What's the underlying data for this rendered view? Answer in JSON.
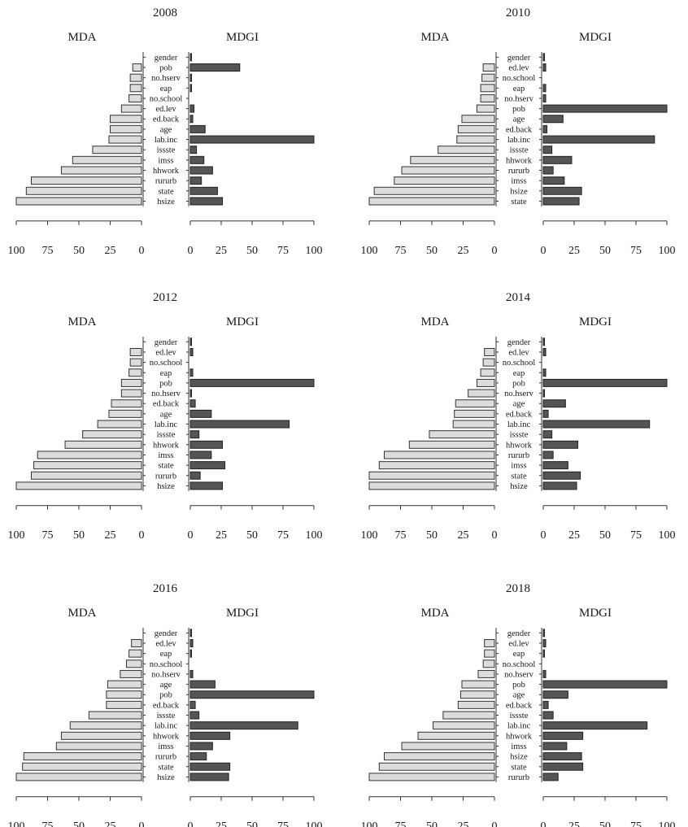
{
  "chart_data": [
    {
      "type": "bar",
      "title": "2008",
      "left_label": "MDA",
      "right_label": "MDGI",
      "categories": [
        "gender",
        "pob",
        "no.hserv",
        "eap",
        "no.school",
        "ed.lev",
        "ed.back",
        "age",
        "lab.inc",
        "issste",
        "imss",
        "hhwork",
        "rururb",
        "state",
        "hsize"
      ],
      "series": [
        {
          "name": "MDA",
          "values": [
            0,
            7,
            9,
            9,
            10,
            16,
            25,
            25,
            26,
            39,
            55,
            64,
            88,
            92,
            100
          ]
        },
        {
          "name": "MDGI",
          "values": [
            1,
            40,
            1,
            1,
            0,
            3,
            2,
            12,
            100,
            5,
            11,
            18,
            9,
            22,
            26
          ]
        }
      ],
      "xticks": [
        "100",
        "75",
        "50",
        "25",
        "0"
      ],
      "xticks_right": [
        "0",
        "25",
        "50",
        "75",
        "100"
      ],
      "xlim": [
        0,
        100
      ]
    },
    {
      "type": "bar",
      "title": "2010",
      "left_label": "MDA",
      "right_label": "MDGI",
      "categories": [
        "gender",
        "ed.lev",
        "no.school",
        "eap",
        "no.hserv",
        "pob",
        "age",
        "ed.back",
        "lab.inc",
        "issste",
        "hhwork",
        "rururb",
        "imss",
        "hsize",
        "state"
      ],
      "series": [
        {
          "name": "MDA",
          "values": [
            0,
            9,
            10,
            11,
            11,
            14,
            26,
            29,
            30,
            45,
            67,
            74,
            80,
            96,
            100
          ]
        },
        {
          "name": "MDGI",
          "values": [
            1,
            2,
            0,
            2,
            2,
            100,
            16,
            3,
            90,
            7,
            23,
            8,
            17,
            31,
            29
          ]
        }
      ],
      "xticks": [
        "100",
        "75",
        "50",
        "25",
        "0"
      ],
      "xticks_right": [
        "0",
        "25",
        "50",
        "75",
        "100"
      ],
      "xlim": [
        0,
        100
      ]
    },
    {
      "type": "bar",
      "title": "2012",
      "left_label": "MDA",
      "right_label": "MDGI",
      "categories": [
        "gender",
        "ed.lev",
        "no.school",
        "eap",
        "pob",
        "no.hserv",
        "ed.back",
        "age",
        "lab.inc",
        "issste",
        "hhwork",
        "imss",
        "state",
        "rururb",
        "hsize"
      ],
      "series": [
        {
          "name": "MDA",
          "values": [
            0,
            9,
            9,
            10,
            16,
            16,
            24,
            26,
            35,
            47,
            61,
            83,
            86,
            88,
            100
          ]
        },
        {
          "name": "MDGI",
          "values": [
            1,
            2,
            0,
            2,
            100,
            1,
            4,
            17,
            80,
            7,
            26,
            17,
            28,
            8,
            26
          ]
        }
      ],
      "xticks": [
        "100",
        "75",
        "50",
        "25",
        "0"
      ],
      "xticks_right": [
        "0",
        "25",
        "50",
        "75",
        "100"
      ],
      "xlim": [
        0,
        100
      ]
    },
    {
      "type": "bar",
      "title": "2014",
      "left_label": "MDA",
      "right_label": "MDGI",
      "categories": [
        "gender",
        "ed.lev",
        "no.school",
        "eap",
        "pob",
        "no.hserv",
        "age",
        "ed.back",
        "lab.inc",
        "issste",
        "hhwork",
        "rururb",
        "imss",
        "state",
        "hsize"
      ],
      "series": [
        {
          "name": "MDA",
          "values": [
            0,
            8,
            9,
            11,
            14,
            21,
            31,
            32,
            33,
            52,
            68,
            88,
            92,
            100,
            100
          ]
        },
        {
          "name": "MDGI",
          "values": [
            1,
            2,
            0,
            2,
            100,
            1,
            18,
            4,
            86,
            7,
            28,
            8,
            20,
            30,
            27
          ]
        }
      ],
      "xticks": [
        "100",
        "75",
        "50",
        "25",
        "0"
      ],
      "xticks_right": [
        "0",
        "25",
        "50",
        "75",
        "100"
      ],
      "xlim": [
        0,
        100
      ]
    },
    {
      "type": "bar",
      "title": "2016",
      "left_label": "MDA",
      "right_label": "MDGI",
      "categories": [
        "gender",
        "ed.lev",
        "eap",
        "no.school",
        "no.hserv",
        "age",
        "pob",
        "ed.back",
        "issste",
        "lab.inc",
        "hhwork",
        "imss",
        "rururb",
        "state",
        "hsize"
      ],
      "series": [
        {
          "name": "MDA",
          "values": [
            0,
            8,
            10,
            12,
            17,
            27,
            28,
            28,
            42,
            57,
            64,
            68,
            94,
            95,
            100
          ]
        },
        {
          "name": "MDGI",
          "values": [
            1,
            2,
            1,
            0,
            2,
            20,
            100,
            4,
            7,
            87,
            32,
            18,
            13,
            32,
            31
          ]
        }
      ],
      "xticks": [
        "100",
        "75",
        "50",
        "25",
        "0"
      ],
      "xticks_right": [
        "0",
        "25",
        "50",
        "75",
        "100"
      ],
      "xlim": [
        0,
        100
      ]
    },
    {
      "type": "bar",
      "title": "2018",
      "left_label": "MDA",
      "right_label": "MDGI",
      "categories": [
        "gender",
        "ed.lev",
        "eap",
        "no.school",
        "no.hserv",
        "pob",
        "age",
        "ed.back",
        "issste",
        "lab.inc",
        "hhwork",
        "imss",
        "hsize",
        "state",
        "rururb"
      ],
      "series": [
        {
          "name": "MDA",
          "values": [
            0,
            8,
            8,
            9,
            13,
            26,
            27,
            29,
            41,
            49,
            61,
            74,
            88,
            92,
            100
          ]
        },
        {
          "name": "MDGI",
          "values": [
            1,
            2,
            1,
            0,
            2,
            100,
            20,
            4,
            8,
            84,
            32,
            19,
            31,
            32,
            12
          ]
        }
      ],
      "xticks": [
        "100",
        "75",
        "50",
        "25",
        "0"
      ],
      "xticks_right": [
        "0",
        "25",
        "50",
        "75",
        "100"
      ],
      "xlim": [
        0,
        100
      ]
    }
  ]
}
